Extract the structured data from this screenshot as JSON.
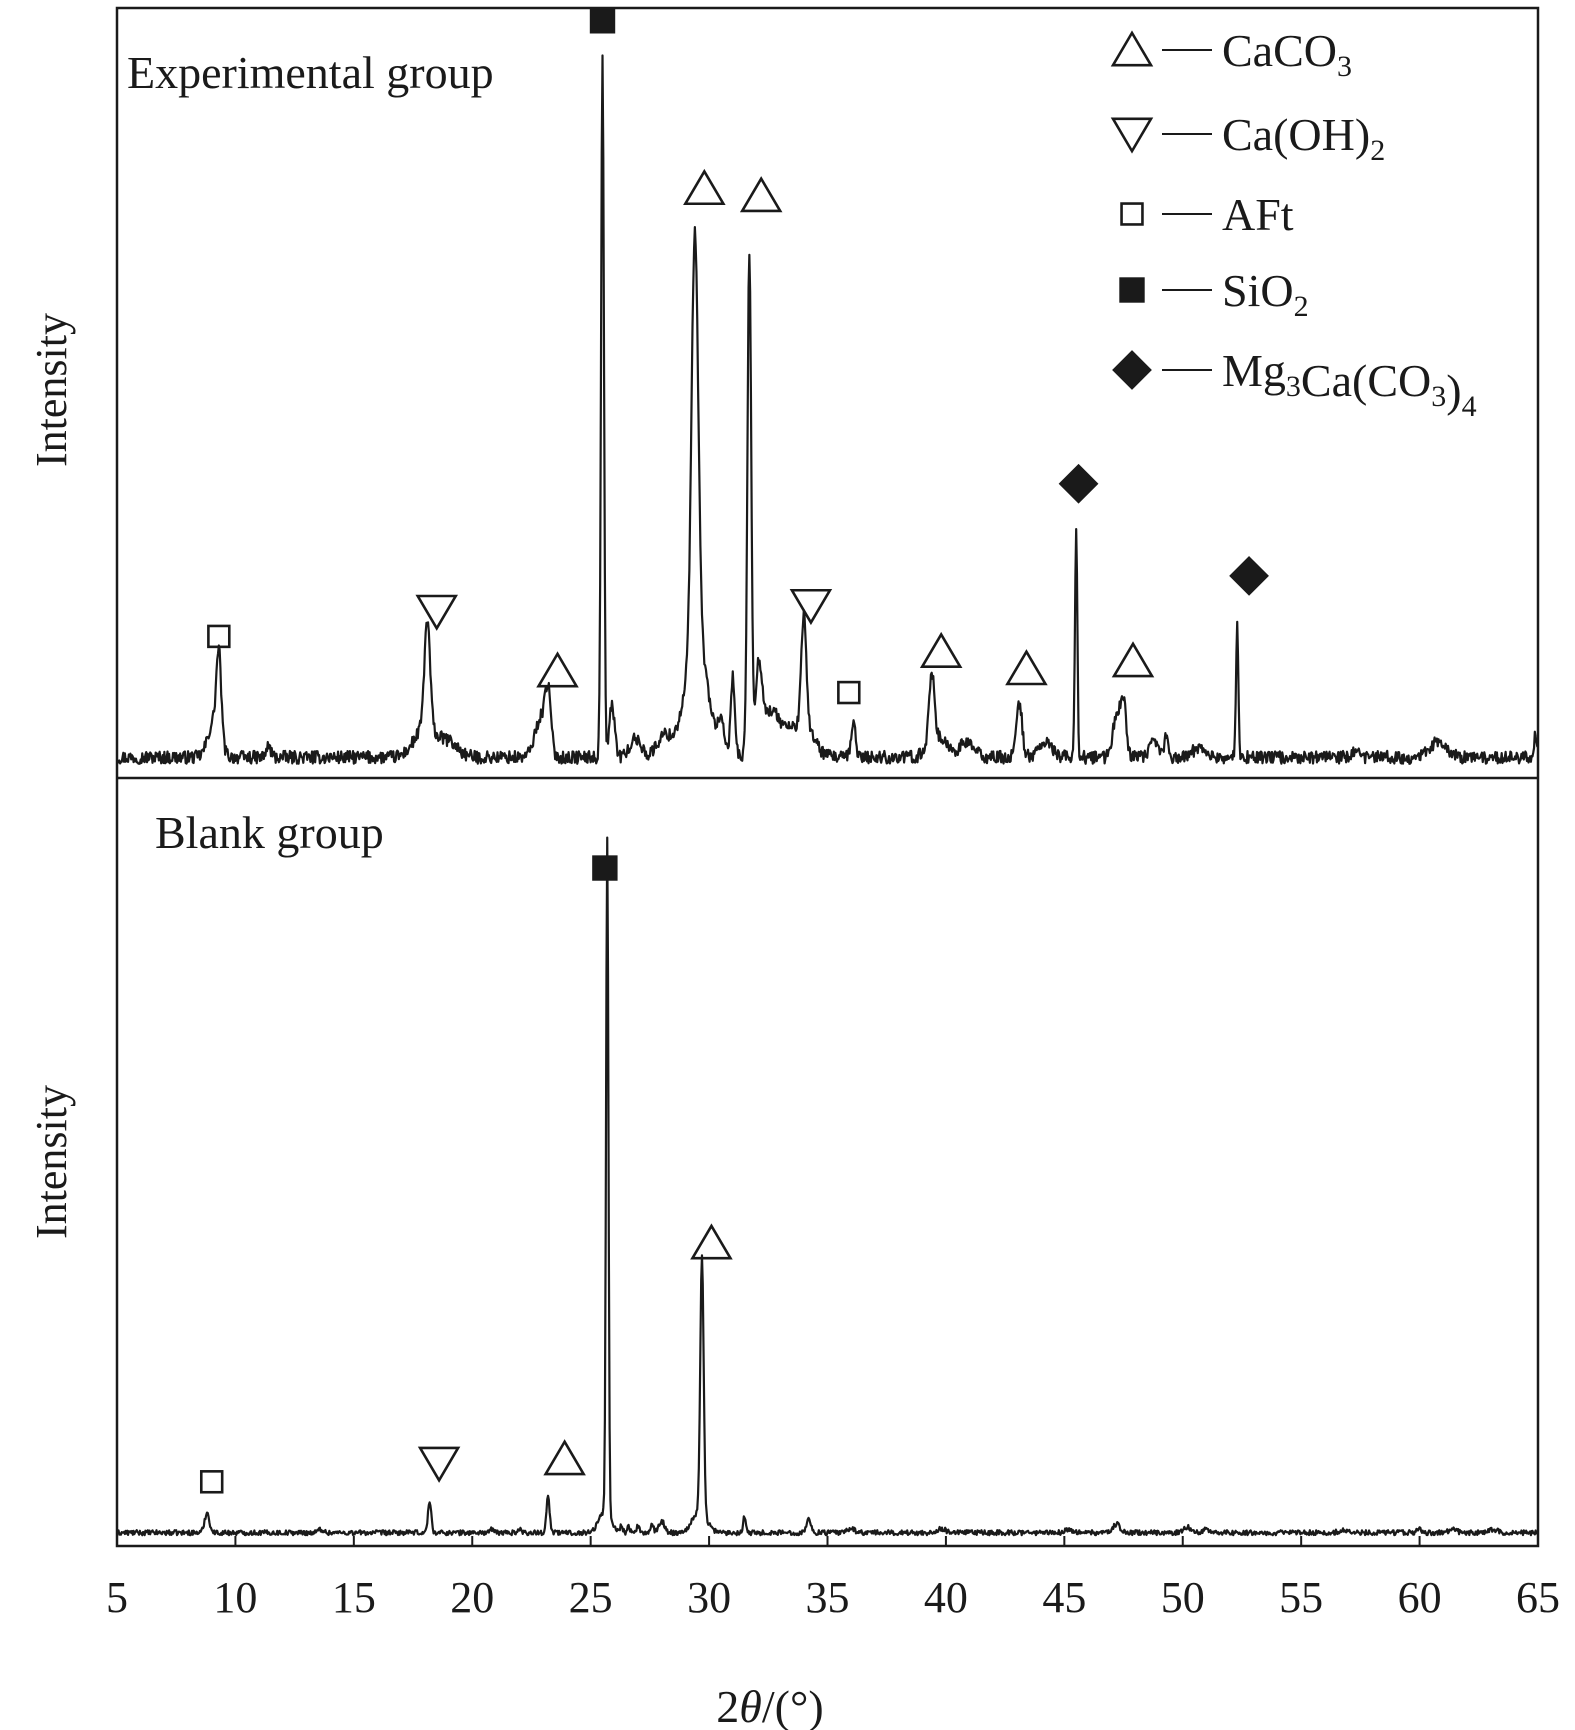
{
  "chart_data": {
    "type": "line",
    "xlabel": "2θ/(°)",
    "xlabel_parts": {
      "pre": "2",
      "italic": "θ",
      "post": "/(°)"
    },
    "ylabel": "Intensity",
    "xlim": [
      5,
      65
    ],
    "x_ticks": [
      5,
      10,
      15,
      20,
      25,
      30,
      35,
      40,
      45,
      50,
      55,
      60,
      65
    ],
    "grid": false,
    "legend_position": "top-right",
    "legend": [
      {
        "marker": "triangle-up-open",
        "dash": "—",
        "label": "CaCO",
        "sub1": "3",
        "mid": "",
        "sub2": ""
      },
      {
        "marker": "triangle-down-open",
        "dash": "—",
        "label": "Ca(OH)",
        "sub1": "2",
        "mid": "",
        "sub2": ""
      },
      {
        "marker": "square-open",
        "dash": "—",
        "label": "AFt",
        "sub1": "",
        "mid": "",
        "sub2": ""
      },
      {
        "marker": "square-filled",
        "dash": "—",
        "label": "SiO",
        "sub1": "2",
        "mid": "",
        "sub2": ""
      },
      {
        "marker": "diamond-filled",
        "dash": "—",
        "label": "Mg",
        "sub1": "3",
        "mid": "Ca(CO",
        "sub2": "3",
        "post": ")",
        "sub3": "4"
      }
    ],
    "panels": [
      {
        "name": "Experimental group",
        "title": "Experimental group",
        "ylabel": "Intensity",
        "ylim": [
          0,
          100
        ],
        "baseline": 1.2,
        "peaks": [
          [
            9.3,
            11.5,
            0.1
          ],
          [
            9.1,
            5.0,
            0.25
          ],
          [
            11.4,
            1.5,
            0.1
          ],
          [
            18.1,
            15.0,
            0.12
          ],
          [
            18.0,
            4.0,
            0.45
          ],
          [
            19.0,
            2.0,
            0.4
          ],
          [
            22.9,
            5.5,
            0.25
          ],
          [
            23.2,
            7.5,
            0.12
          ],
          [
            25.5,
            98.0,
            0.06
          ],
          [
            25.9,
            7.0,
            0.12
          ],
          [
            26.9,
            2.5,
            0.25
          ],
          [
            28.1,
            3.0,
            0.3
          ],
          [
            29.0,
            5.0,
            0.35
          ],
          [
            29.4,
            58.0,
            0.14
          ],
          [
            29.6,
            14.0,
            0.4
          ],
          [
            30.5,
            4.0,
            0.15
          ],
          [
            31.0,
            11.0,
            0.09
          ],
          [
            31.7,
            70.0,
            0.08
          ],
          [
            32.1,
            12.0,
            0.15
          ],
          [
            32.6,
            6.0,
            0.3
          ],
          [
            33.2,
            3.0,
            0.3
          ],
          [
            34.0,
            15.0,
            0.1
          ],
          [
            34.0,
            5.0,
            0.4
          ],
          [
            36.1,
            5.0,
            0.09
          ],
          [
            39.4,
            10.0,
            0.12
          ],
          [
            39.7,
            2.5,
            0.4
          ],
          [
            40.9,
            2.0,
            0.3
          ],
          [
            43.1,
            7.5,
            0.12
          ],
          [
            44.2,
            2.0,
            0.3
          ],
          [
            45.5,
            32.0,
            0.05
          ],
          [
            47.2,
            6.0,
            0.15
          ],
          [
            47.5,
            7.5,
            0.12
          ],
          [
            48.8,
            2.0,
            0.2
          ],
          [
            49.3,
            3.0,
            0.07
          ],
          [
            50.7,
            1.5,
            0.25
          ],
          [
            52.3,
            18.0,
            0.05
          ],
          [
            57.3,
            1.0,
            0.1
          ],
          [
            60.6,
            1.5,
            0.25
          ],
          [
            61.0,
            1.0,
            0.3
          ],
          [
            64.9,
            3.0,
            0.08
          ]
        ],
        "annotations": [
          {
            "marker": "square-open",
            "x": 9.3,
            "y": 18.0
          },
          {
            "marker": "triangle-down-open",
            "x": 18.5,
            "y": 21.5
          },
          {
            "marker": "triangle-up-open",
            "x": 23.6,
            "y": 13.2
          },
          {
            "marker": "square-filled",
            "x": 25.5,
            "y": 103.5
          },
          {
            "marker": "triangle-up-open",
            "x": 29.8,
            "y": 80.2
          },
          {
            "marker": "triangle-up-open",
            "x": 32.2,
            "y": 79.2
          },
          {
            "marker": "triangle-down-open",
            "x": 34.3,
            "y": 22.3
          },
          {
            "marker": "square-open",
            "x": 35.9,
            "y": 10.2
          },
          {
            "marker": "triangle-up-open",
            "x": 39.8,
            "y": 15.9
          },
          {
            "marker": "triangle-up-open",
            "x": 43.4,
            "y": 13.5
          },
          {
            "marker": "diamond-filled",
            "x": 45.6,
            "y": 39.2
          },
          {
            "marker": "triangle-up-open",
            "x": 47.9,
            "y": 14.6
          },
          {
            "marker": "diamond-filled",
            "x": 52.8,
            "y": 26.4
          }
        ]
      },
      {
        "name": "Blank group",
        "title": "Blank group",
        "ylabel": "Intensity",
        "ylim": [
          0,
          100
        ],
        "baseline": 0.6,
        "peaks": [
          [
            8.8,
            2.8,
            0.1
          ],
          [
            13.6,
            0.5,
            0.1
          ],
          [
            18.2,
            4.3,
            0.07
          ],
          [
            20.8,
            0.4,
            0.1
          ],
          [
            22.0,
            0.4,
            0.1
          ],
          [
            23.2,
            5.0,
            0.07
          ],
          [
            25.7,
            94.0,
            0.05
          ],
          [
            25.6,
            3.0,
            0.25
          ],
          [
            26.3,
            1.2,
            0.05
          ],
          [
            26.6,
            1.0,
            0.05
          ],
          [
            27.0,
            1.0,
            0.05
          ],
          [
            27.6,
            1.2,
            0.05
          ],
          [
            28.0,
            1.6,
            0.12
          ],
          [
            29.7,
            36.0,
            0.07
          ],
          [
            29.6,
            3.0,
            0.3
          ],
          [
            31.5,
            2.4,
            0.06
          ],
          [
            34.2,
            1.8,
            0.1
          ],
          [
            36.0,
            0.6,
            0.15
          ],
          [
            39.8,
            0.5,
            0.2
          ],
          [
            45.2,
            0.5,
            0.15
          ],
          [
            47.2,
            1.2,
            0.15
          ],
          [
            50.2,
            0.8,
            0.15
          ],
          [
            51.0,
            0.5,
            0.15
          ],
          [
            56.8,
            0.4,
            0.2
          ],
          [
            60.0,
            0.5,
            0.1
          ],
          [
            61.4,
            0.6,
            0.15
          ],
          [
            63.1,
            0.4,
            0.2
          ]
        ],
        "annotations": [
          {
            "marker": "square-open",
            "x": 9.0,
            "y": 7.7
          },
          {
            "marker": "triangle-down-open",
            "x": 18.6,
            "y": 10.3
          },
          {
            "marker": "triangle-up-open",
            "x": 23.9,
            "y": 10.9
          },
          {
            "marker": "square-filled",
            "x": 25.6,
            "y": 93.3
          },
          {
            "marker": "triangle-up-open",
            "x": 30.1,
            "y": 41.0
          }
        ]
      }
    ]
  }
}
